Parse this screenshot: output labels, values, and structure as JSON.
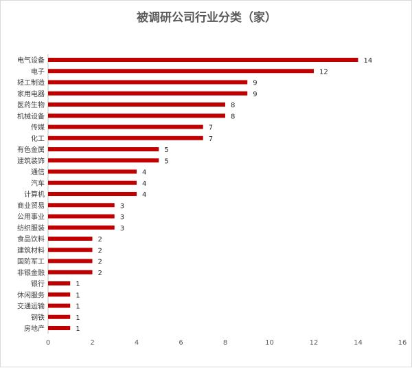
{
  "chart_data": {
    "type": "bar",
    "orientation": "horizontal",
    "title": "被调研公司行业分类（家）",
    "categories": [
      "电气设备",
      "电子",
      "轻工制造",
      "家用电器",
      "医药生物",
      "机械设备",
      "传媒",
      "化工",
      "有色金属",
      "建筑装饰",
      "通信",
      "汽车",
      "计算机",
      "商业贸易",
      "公用事业",
      "纺织服装",
      "食品饮料",
      "建筑材料",
      "国防军工",
      "非银金融",
      "银行",
      "休闲服务",
      "交通运输",
      "钢铁",
      "房地产"
    ],
    "values": [
      14,
      12,
      9,
      9,
      8,
      8,
      7,
      7,
      5,
      5,
      4,
      4,
      4,
      3,
      3,
      3,
      2,
      2,
      2,
      2,
      1,
      1,
      1,
      1,
      1
    ],
    "xlim": [
      0,
      16
    ],
    "xticks": [
      "0",
      "2",
      "4",
      "6",
      "8",
      "10",
      "12",
      "14",
      "16"
    ],
    "grid": false,
    "legend": "none",
    "bar_color": "#c00000"
  }
}
